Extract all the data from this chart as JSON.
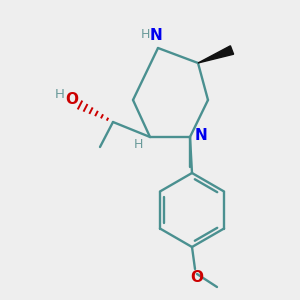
{
  "bg_color": "#eeeeee",
  "bond_color": "#4a9090",
  "N_color": "#0000ee",
  "O_color": "#cc0000",
  "H_color": "#6a9a9a",
  "wedge_color": "#111111",
  "dashed_color": "#cc0000"
}
